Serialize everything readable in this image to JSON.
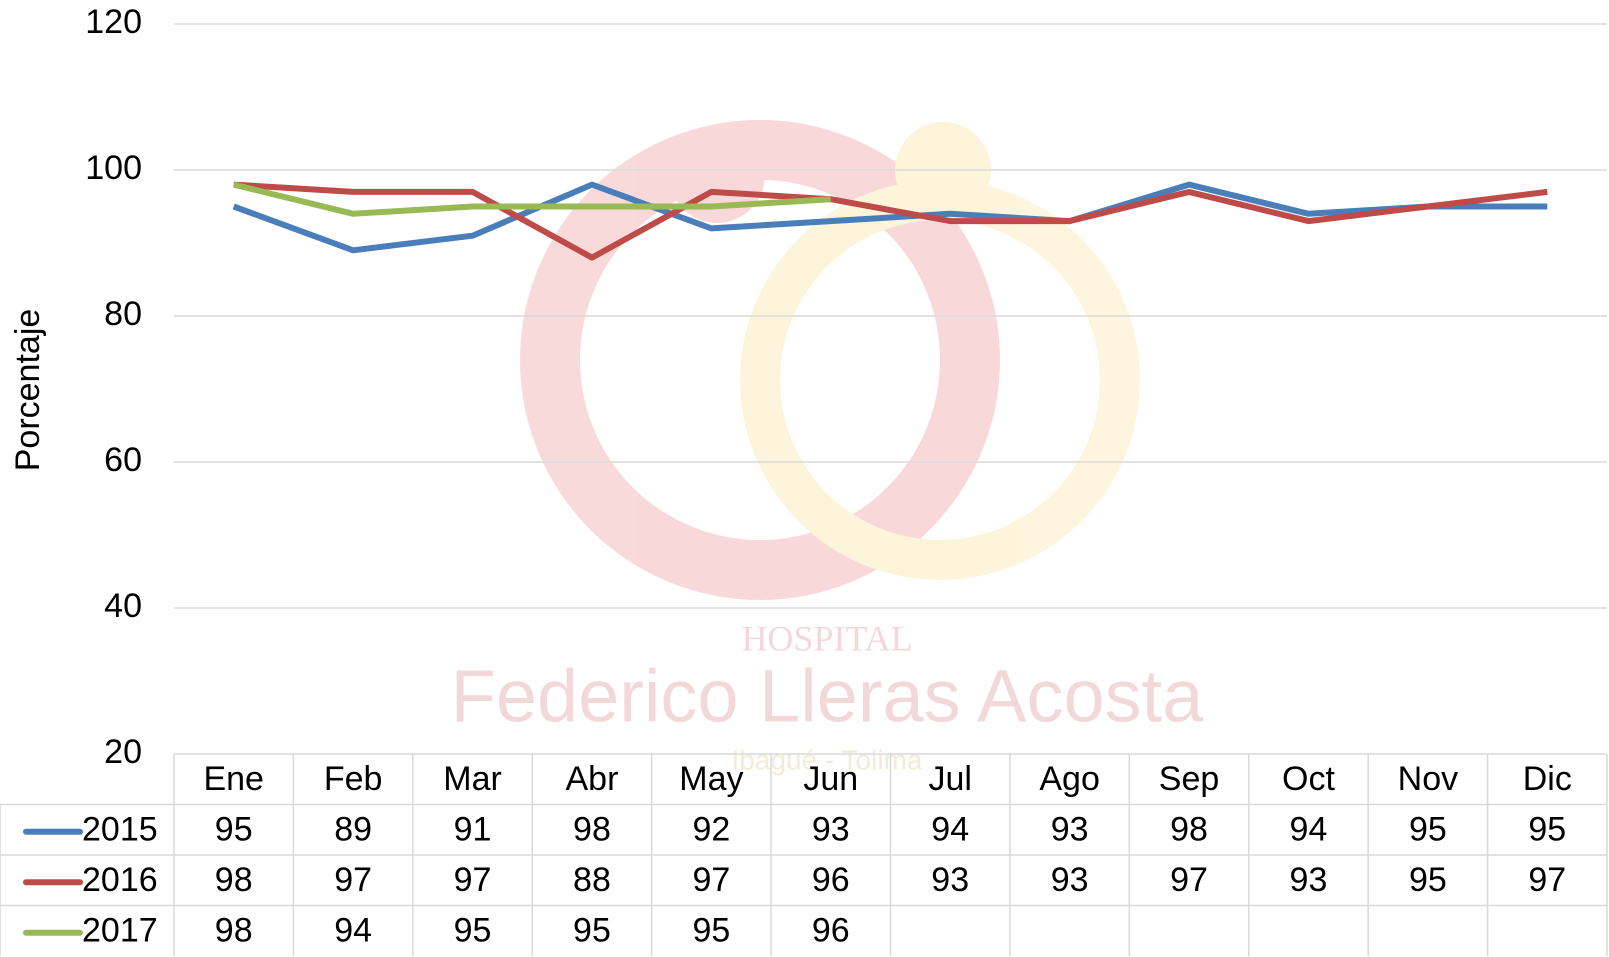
{
  "chart_data": {
    "type": "line",
    "y_label": "Porcentaje",
    "watermark": [
      "HOSPITAL",
      "Federico Lleras Acosta",
      "Ibagué - Tolima"
    ],
    "categories": [
      "Ene",
      "Feb",
      "Mar",
      "Abr",
      "May",
      "Jun",
      "Jul",
      "Ago",
      "Sep",
      "Oct",
      "Nov",
      "Dic"
    ],
    "series": [
      {
        "name": "2015",
        "color": "#4a7ebb",
        "values": [
          95,
          89,
          91,
          98,
          92,
          93,
          94,
          93,
          98,
          94,
          95,
          95
        ]
      },
      {
        "name": "2016",
        "color": "#be4b48",
        "values": [
          98,
          97,
          97,
          88,
          97,
          96,
          93,
          93,
          97,
          93,
          95,
          97
        ]
      },
      {
        "name": "2017",
        "color": "#98b954",
        "values": [
          98,
          94,
          95,
          95,
          95,
          96,
          null,
          null,
          null,
          null,
          null,
          null
        ]
      }
    ],
    "ylim": [
      20,
      120
    ],
    "yticks": [
      20,
      40,
      60,
      80,
      100,
      120
    ],
    "grid": true
  }
}
